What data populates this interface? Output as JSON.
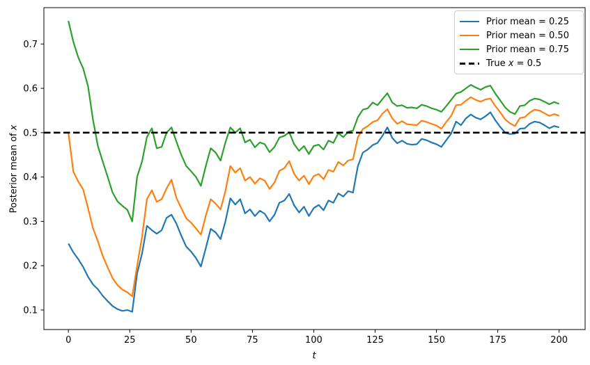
{
  "axes": {
    "ylabel_prefix": "Posterior mean of ",
    "ylabel_var": "x",
    "xlabel": "t"
  },
  "legend": {
    "position": "upper right",
    "items": [
      {
        "label": "Prior mean = 0.25",
        "color": "#1f77b4",
        "style": "solid"
      },
      {
        "label": "Prior mean = 0.50",
        "color": "#ff7f0e",
        "style": "solid"
      },
      {
        "label": "Prior mean = 0.75",
        "color": "#2ca02c",
        "style": "solid"
      },
      {
        "label": "True x = 0.5",
        "color": "#000000",
        "style": "dashed",
        "parts": {
          "prefix": "True ",
          "var": "x",
          "suffix": " = 0.5"
        }
      }
    ]
  },
  "chart_data": {
    "type": "line",
    "title": "",
    "xlabel": "t",
    "ylabel": "Posterior mean of x",
    "xlim": [
      -10.0,
      210.6
    ],
    "ylim": [
      0.056,
      0.782
    ],
    "x_ticks": [
      0,
      25,
      50,
      75,
      100,
      125,
      150,
      175,
      200
    ],
    "y_ticks": [
      0.1,
      0.2,
      0.3,
      0.4,
      0.5,
      0.6,
      0.7
    ],
    "grid": false,
    "legend_position": "upper right",
    "reference_line": {
      "label": "True x = 0.5",
      "value": 0.5,
      "color": "#000000",
      "style": "dashed"
    },
    "x": [
      0,
      2,
      4,
      6,
      8,
      10,
      12,
      14,
      16,
      18,
      20,
      22,
      24,
      26,
      28,
      30,
      32,
      34,
      36,
      38,
      40,
      42,
      44,
      46,
      48,
      50,
      52,
      54,
      56,
      58,
      60,
      62,
      64,
      66,
      68,
      70,
      72,
      74,
      76,
      78,
      80,
      82,
      84,
      86,
      88,
      90,
      92,
      94,
      96,
      98,
      100,
      102,
      104,
      106,
      108,
      110,
      112,
      114,
      116,
      118,
      120,
      122,
      124,
      126,
      128,
      130,
      132,
      134,
      136,
      138,
      140,
      142,
      144,
      146,
      148,
      150,
      152,
      154,
      156,
      158,
      160,
      162,
      164,
      166,
      168,
      170,
      172,
      174,
      176,
      178,
      180,
      182,
      184,
      186,
      188,
      190,
      192,
      194,
      196,
      198,
      200
    ],
    "series": [
      {
        "name": "Prior mean = 0.25",
        "color": "#1f77b4",
        "values": [
          0.25,
          0.23,
          0.215,
          0.197,
          0.175,
          0.158,
          0.147,
          0.132,
          0.12,
          0.109,
          0.102,
          0.098,
          0.1,
          0.096,
          0.182,
          0.227,
          0.29,
          0.28,
          0.272,
          0.28,
          0.308,
          0.315,
          0.295,
          0.268,
          0.243,
          0.232,
          0.217,
          0.198,
          0.24,
          0.283,
          0.275,
          0.26,
          0.3,
          0.352,
          0.338,
          0.35,
          0.318,
          0.327,
          0.312,
          0.324,
          0.317,
          0.3,
          0.315,
          0.342,
          0.347,
          0.362,
          0.336,
          0.32,
          0.333,
          0.312,
          0.33,
          0.337,
          0.325,
          0.347,
          0.342,
          0.363,
          0.356,
          0.368,
          0.365,
          0.425,
          0.455,
          0.462,
          0.472,
          0.477,
          0.493,
          0.512,
          0.488,
          0.476,
          0.482,
          0.475,
          0.473,
          0.474,
          0.486,
          0.483,
          0.478,
          0.474,
          0.468,
          0.483,
          0.498,
          0.525,
          0.517,
          0.532,
          0.541,
          0.534,
          0.53,
          0.537,
          0.546,
          0.528,
          0.513,
          0.5,
          0.497,
          0.498,
          0.509,
          0.51,
          0.52,
          0.525,
          0.523,
          0.517,
          0.51,
          0.515,
          0.512
        ]
      },
      {
        "name": "Prior mean = 0.50",
        "color": "#ff7f0e",
        "values": [
          0.5,
          0.412,
          0.39,
          0.372,
          0.33,
          0.285,
          0.255,
          0.222,
          0.196,
          0.172,
          0.156,
          0.146,
          0.14,
          0.131,
          0.199,
          0.265,
          0.35,
          0.37,
          0.344,
          0.35,
          0.374,
          0.394,
          0.353,
          0.33,
          0.307,
          0.297,
          0.284,
          0.27,
          0.313,
          0.35,
          0.34,
          0.327,
          0.368,
          0.425,
          0.41,
          0.42,
          0.392,
          0.4,
          0.385,
          0.397,
          0.392,
          0.373,
          0.388,
          0.414,
          0.42,
          0.436,
          0.407,
          0.392,
          0.403,
          0.384,
          0.402,
          0.407,
          0.395,
          0.416,
          0.412,
          0.434,
          0.426,
          0.437,
          0.44,
          0.49,
          0.508,
          0.515,
          0.524,
          0.528,
          0.543,
          0.553,
          0.532,
          0.52,
          0.526,
          0.519,
          0.518,
          0.517,
          0.527,
          0.524,
          0.52,
          0.516,
          0.509,
          0.524,
          0.538,
          0.562,
          0.563,
          0.572,
          0.58,
          0.574,
          0.57,
          0.575,
          0.577,
          0.56,
          0.546,
          0.53,
          0.521,
          0.515,
          0.533,
          0.535,
          0.545,
          0.552,
          0.55,
          0.544,
          0.538,
          0.542,
          0.538
        ]
      },
      {
        "name": "Prior mean = 0.75",
        "color": "#2ca02c",
        "values": [
          0.752,
          0.705,
          0.67,
          0.645,
          0.605,
          0.53,
          0.47,
          0.435,
          0.4,
          0.365,
          0.345,
          0.335,
          0.326,
          0.3,
          0.4,
          0.435,
          0.49,
          0.51,
          0.465,
          0.468,
          0.5,
          0.512,
          0.48,
          0.45,
          0.425,
          0.413,
          0.4,
          0.38,
          0.425,
          0.465,
          0.455,
          0.437,
          0.478,
          0.512,
          0.5,
          0.51,
          0.478,
          0.484,
          0.467,
          0.478,
          0.474,
          0.456,
          0.468,
          0.489,
          0.493,
          0.501,
          0.474,
          0.459,
          0.47,
          0.452,
          0.47,
          0.473,
          0.462,
          0.482,
          0.477,
          0.499,
          0.49,
          0.502,
          0.505,
          0.535,
          0.552,
          0.555,
          0.568,
          0.562,
          0.576,
          0.589,
          0.568,
          0.56,
          0.562,
          0.556,
          0.557,
          0.555,
          0.563,
          0.56,
          0.555,
          0.552,
          0.547,
          0.56,
          0.574,
          0.588,
          0.592,
          0.6,
          0.608,
          0.602,
          0.597,
          0.603,
          0.606,
          0.588,
          0.573,
          0.557,
          0.547,
          0.542,
          0.56,
          0.562,
          0.572,
          0.577,
          0.575,
          0.57,
          0.564,
          0.569,
          0.565
        ]
      }
    ]
  }
}
